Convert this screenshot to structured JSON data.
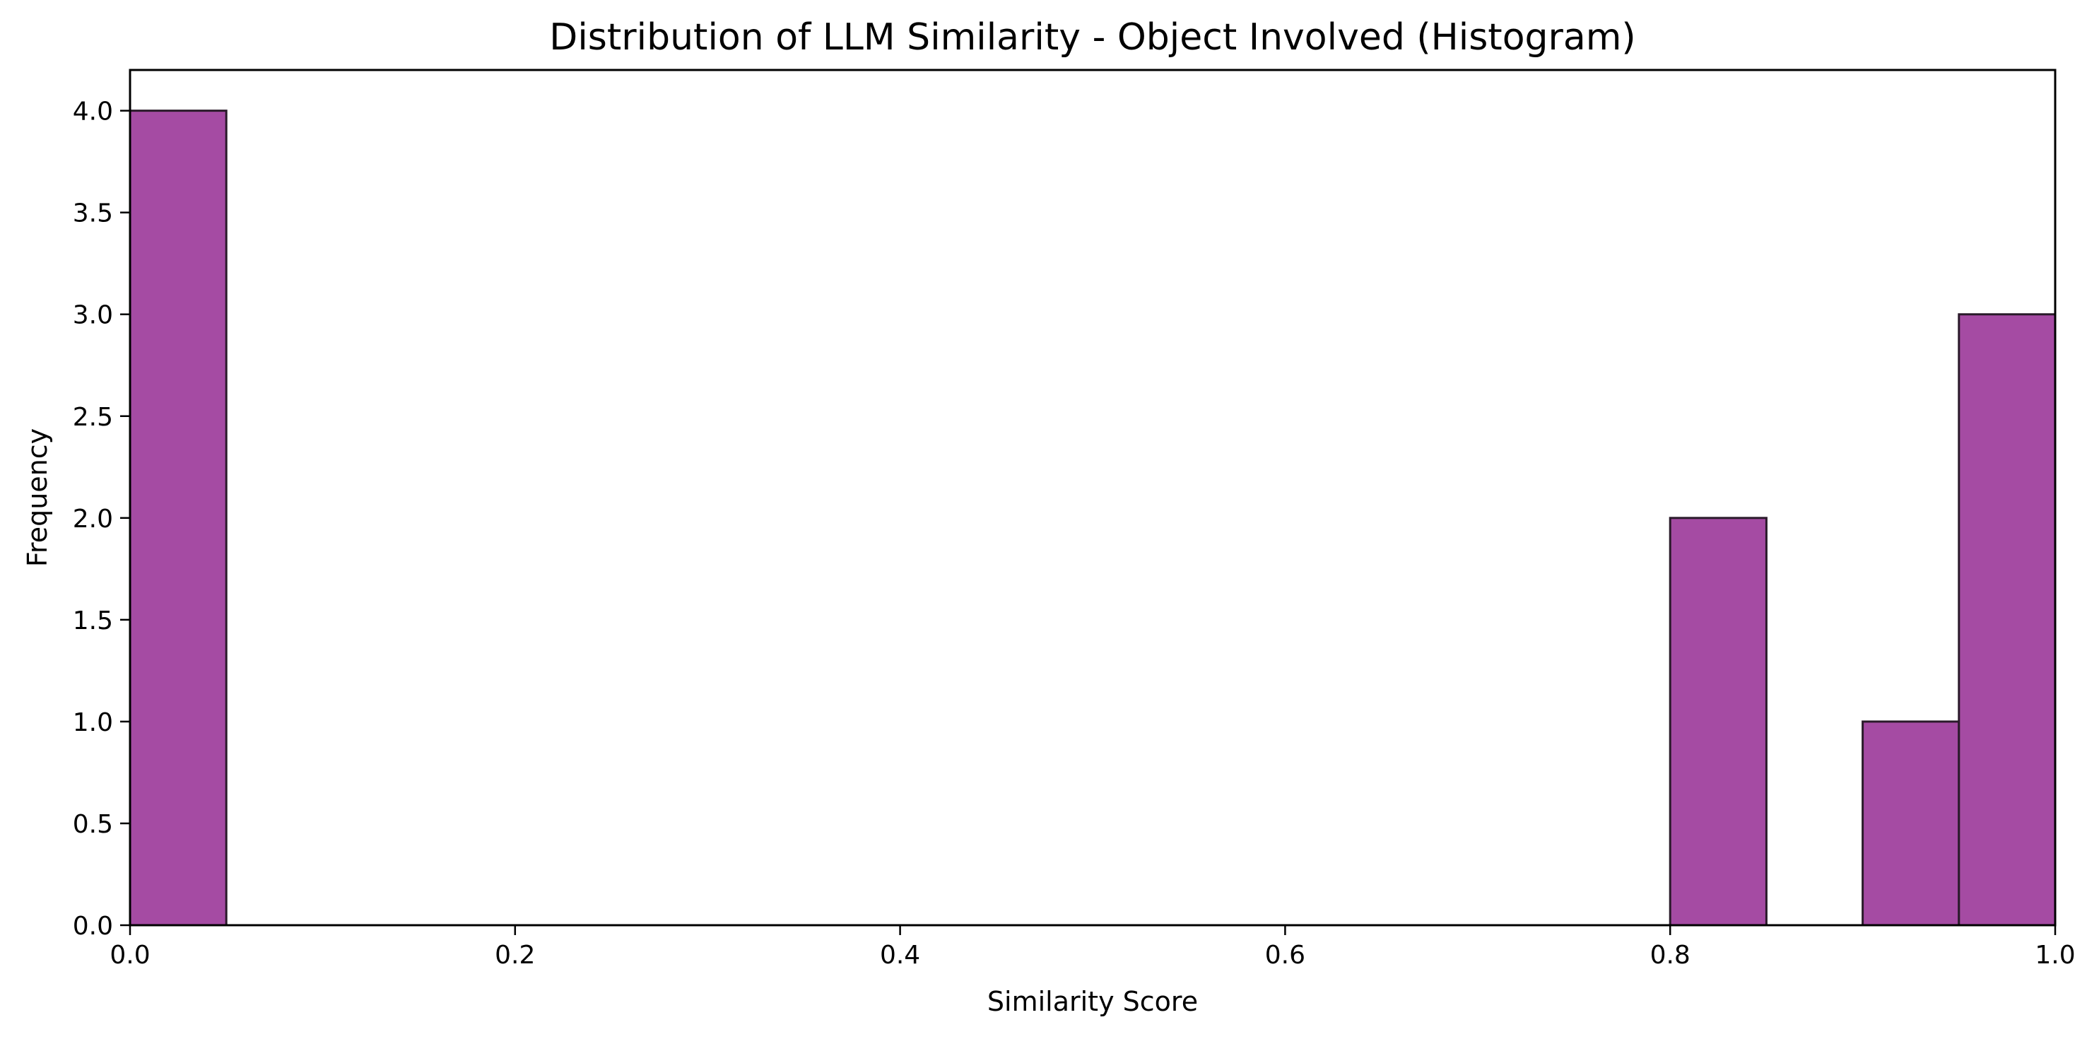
{
  "chart_data": {
    "type": "bar",
    "subtype": "histogram",
    "title": "Distribution of LLM Similarity - Object Involved (Histogram)",
    "xlabel": "Similarity Score",
    "ylabel": "Frequency",
    "xlim": [
      0.0,
      1.0
    ],
    "ylim": [
      0.0,
      4.2
    ],
    "bins": [
      {
        "x0": 0.0,
        "x1": 0.05,
        "count": 4
      },
      {
        "x0": 0.8,
        "x1": 0.85,
        "count": 2
      },
      {
        "x0": 0.9,
        "x1": 0.95,
        "count": 1
      },
      {
        "x0": 0.95,
        "x1": 1.0,
        "count": 3
      }
    ],
    "x_ticks": [
      {
        "value": 0.0,
        "label": "0.0"
      },
      {
        "value": 0.2,
        "label": "0.2"
      },
      {
        "value": 0.4,
        "label": "0.4"
      },
      {
        "value": 0.6,
        "label": "0.6"
      },
      {
        "value": 0.8,
        "label": "0.8"
      },
      {
        "value": 1.0,
        "label": "1.0"
      }
    ],
    "y_ticks": [
      {
        "value": 0.0,
        "label": "0.0"
      },
      {
        "value": 0.5,
        "label": "0.5"
      },
      {
        "value": 1.0,
        "label": "1.0"
      },
      {
        "value": 1.5,
        "label": "1.5"
      },
      {
        "value": 2.0,
        "label": "2.0"
      },
      {
        "value": 2.5,
        "label": "2.5"
      },
      {
        "value": 3.0,
        "label": "3.0"
      },
      {
        "value": 3.5,
        "label": "3.5"
      },
      {
        "value": 4.0,
        "label": "4.0"
      }
    ],
    "grid": false,
    "legend": "none",
    "colors": {
      "bar_fill": "#a54ba3",
      "bar_edge": "#2a1a2a"
    }
  }
}
